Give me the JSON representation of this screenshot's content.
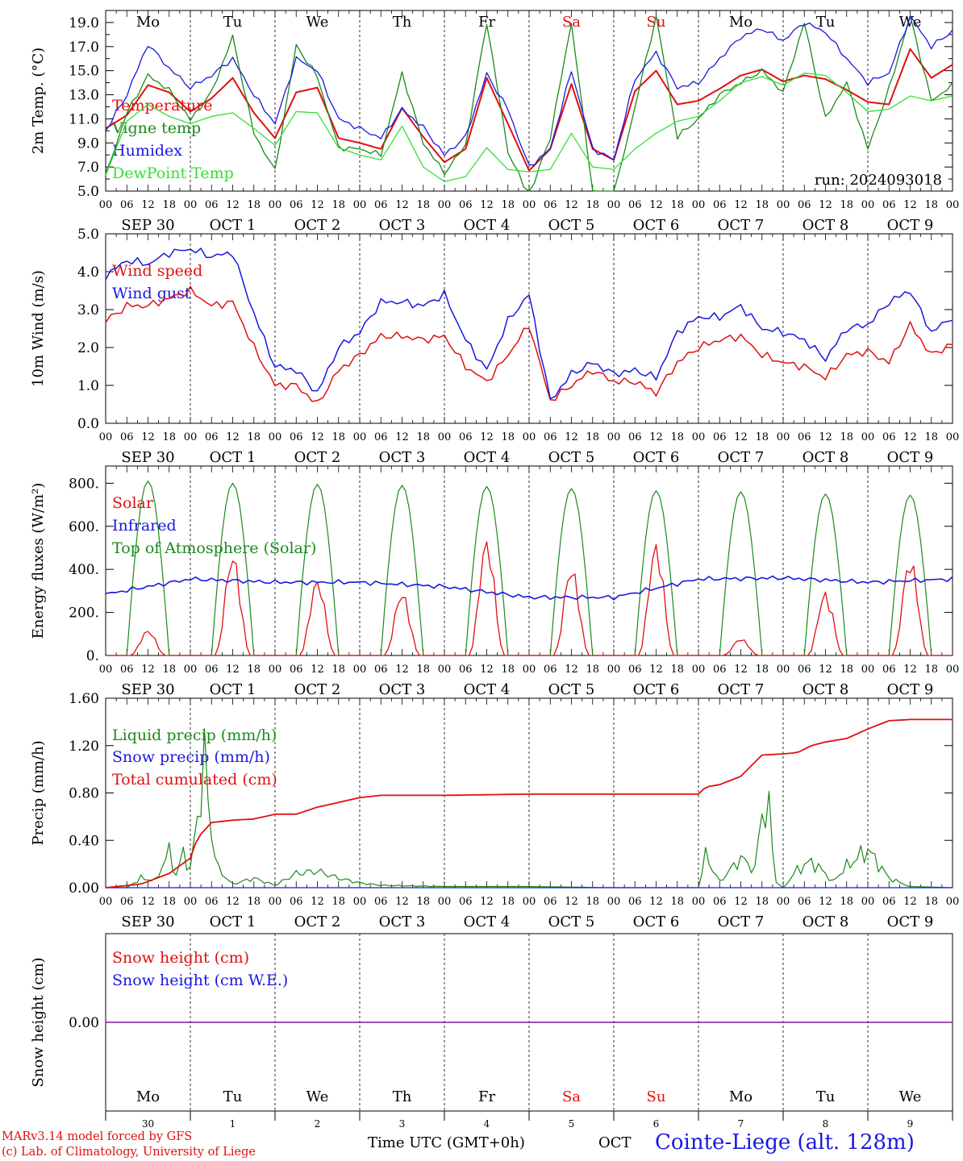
{
  "colors": {
    "red": "#e01010",
    "green": "#1a8a1a",
    "blue": "#1818e0",
    "lightgreen": "#33e033",
    "purple": "#7a1a9a",
    "black": "#000000"
  },
  "x_axis": {
    "tick_hours": [
      "00",
      "06",
      "12",
      "18"
    ],
    "last_tick": "00",
    "dates": [
      "SEP 30",
      "OCT  1",
      "OCT  2",
      "OCT  3",
      "OCT  4",
      "OCT  5",
      "OCT  6",
      "OCT  7",
      "OCT  8",
      "OCT  9"
    ],
    "day_abbr": [
      "Mo",
      "Tu",
      "We",
      "Th",
      "Fr",
      "Sa",
      "Su",
      "Mo",
      "Tu",
      "We"
    ],
    "weekend_days": [
      5,
      6
    ],
    "day_numbers": [
      "30",
      "1",
      "2",
      "3",
      "4",
      "5",
      "6",
      "7",
      "8",
      "9"
    ],
    "xlabel": "Time UTC (GMT+0h)",
    "month": "OCT"
  },
  "footer": {
    "model": "MARv3.14 model forced by GFS",
    "lab": "(c) Lab. of Climatology, University of Liege",
    "station": "Cointe-Liege (alt. 128m)"
  },
  "chart_data": [
    {
      "type": "line",
      "id": "temp",
      "ylabel": "2m Temp. (°C)",
      "ylim": [
        5.0,
        20.0
      ],
      "yticks": [
        5.0,
        7.0,
        9.0,
        11.0,
        13.0,
        15.0,
        17.0,
        19.0
      ],
      "ytick_labels": [
        "5.0",
        "7.0",
        "9.0",
        "11.0",
        "13.0",
        "15.0",
        "17.0",
        "19.0"
      ],
      "annotation": "run: 2024093018",
      "x_hours": [
        0,
        6,
        12,
        18,
        24,
        30,
        36,
        42,
        48,
        54,
        60,
        66,
        72,
        78,
        84,
        90,
        96,
        102,
        108,
        114,
        120,
        126,
        132,
        138,
        144,
        150,
        156,
        162,
        168,
        174,
        180,
        186,
        192,
        198,
        204,
        210,
        216,
        222,
        228,
        234,
        240
      ],
      "series": [
        {
          "name": "Temperature",
          "color": "red",
          "values": [
            10.2,
            11.3,
            13.8,
            13.2,
            11.6,
            12.7,
            14.4,
            11.5,
            9.4,
            13.2,
            13.6,
            9.4,
            9.0,
            8.5,
            11.9,
            9.5,
            7.4,
            8.5,
            14.4,
            10.6,
            6.7,
            8.5,
            13.9,
            8.5,
            7.6,
            13.3,
            15.0,
            12.2,
            12.5,
            13.5,
            14.6,
            15.1,
            14.1,
            14.6,
            14.3,
            13.4,
            12.4,
            12.2,
            16.8,
            14.4,
            15.5
          ]
        },
        {
          "name": "Vigne temp",
          "color": "green",
          "values": [
            6.3,
            11.5,
            14.6,
            13.4,
            10.9,
            13.2,
            17.8,
            9.8,
            6.7,
            17.1,
            14.5,
            8.6,
            8.5,
            8.0,
            14.8,
            9.0,
            6.5,
            8.8,
            19.0,
            8.3,
            4.5,
            9.5,
            19.0,
            5.0,
            4.5,
            12.0,
            19.5,
            9.5,
            11.0,
            13.0,
            14.0,
            15.0,
            13.2,
            19.0,
            11.0,
            14.0,
            8.5,
            13.5,
            19.5,
            12.5,
            13.8
          ]
        },
        {
          "name": "Humidex",
          "color": "blue",
          "values": [
            10.0,
            13.0,
            17.2,
            15.2,
            13.6,
            14.6,
            16.0,
            13.0,
            10.6,
            16.0,
            15.0,
            11.0,
            10.2,
            9.4,
            11.8,
            10.3,
            8.0,
            9.5,
            14.7,
            11.8,
            7.0,
            8.5,
            15.0,
            8.5,
            7.6,
            14.3,
            16.5,
            13.6,
            14.0,
            16.0,
            17.8,
            18.5,
            17.5,
            19.0,
            18.2,
            16.0,
            14.0,
            14.8,
            19.5,
            17.0,
            18.3
          ]
        },
        {
          "name": "DewPoint Temp",
          "color": "lightgreen",
          "values": [
            6.3,
            10.8,
            12.2,
            11.2,
            10.6,
            11.2,
            11.5,
            10.2,
            8.8,
            11.6,
            11.5,
            8.6,
            8.0,
            7.6,
            10.4,
            7.0,
            5.8,
            6.2,
            8.6,
            6.8,
            6.6,
            6.8,
            9.8,
            7.0,
            6.8,
            8.5,
            9.8,
            10.8,
            11.2,
            12.5,
            14.0,
            14.5,
            13.8,
            14.8,
            14.6,
            13.2,
            11.6,
            11.8,
            12.9,
            12.5,
            12.9
          ]
        }
      ]
    },
    {
      "type": "line",
      "id": "wind",
      "ylabel": "10m Wind (m/s)",
      "ylim": [
        0.0,
        5.0
      ],
      "yticks": [
        0.0,
        1.0,
        2.0,
        3.0,
        4.0,
        5.0
      ],
      "ytick_labels": [
        "0.0",
        "1.0",
        "2.0",
        "3.0",
        "4.0",
        "5.0"
      ],
      "x_hours": [
        0,
        6,
        12,
        18,
        24,
        30,
        36,
        42,
        48,
        54,
        60,
        66,
        72,
        78,
        84,
        90,
        96,
        102,
        108,
        114,
        120,
        126,
        132,
        138,
        144,
        150,
        156,
        162,
        168,
        174,
        180,
        186,
        192,
        198,
        204,
        210,
        216,
        222,
        228,
        234,
        240
      ],
      "series": [
        {
          "name": "Wind speed",
          "color": "red",
          "values": [
            2.7,
            3.1,
            3.1,
            3.3,
            3.5,
            3.1,
            3.2,
            2.0,
            1.0,
            1.0,
            0.5,
            1.4,
            1.8,
            2.3,
            2.3,
            2.2,
            2.3,
            1.5,
            1.1,
            1.8,
            2.6,
            0.6,
            1.0,
            1.4,
            1.1,
            1.1,
            0.8,
            1.6,
            2.0,
            2.2,
            2.3,
            1.8,
            1.6,
            1.5,
            1.2,
            1.8,
            1.9,
            1.6,
            2.6,
            1.8,
            2.1
          ]
        },
        {
          "name": "Wind gust",
          "color": "blue",
          "values": [
            3.9,
            4.3,
            4.2,
            4.5,
            4.6,
            4.4,
            4.5,
            2.9,
            1.5,
            1.4,
            0.8,
            2.0,
            2.4,
            3.2,
            3.2,
            3.1,
            3.4,
            2.2,
            1.4,
            2.7,
            3.4,
            0.6,
            1.3,
            1.6,
            1.3,
            1.4,
            1.2,
            2.4,
            2.8,
            2.8,
            3.1,
            2.5,
            2.4,
            2.2,
            1.7,
            2.5,
            2.6,
            3.2,
            3.5,
            2.4,
            2.8
          ]
        }
      ]
    },
    {
      "type": "line",
      "id": "energy",
      "ylabel": "Energy fluxes (W/m²)",
      "ylim": [
        0,
        880
      ],
      "yticks": [
        0,
        200,
        400,
        600,
        800
      ],
      "ytick_labels": [
        "0.",
        "200.",
        "400.",
        "600.",
        "800."
      ],
      "series": [
        {
          "name": "Solar",
          "color": "red",
          "peaks": [
            120,
            480,
            360,
            300,
            550,
            420,
            530,
            80,
            300,
            460
          ]
        },
        {
          "name": "Infrared",
          "color": "blue",
          "x_hours": [
            0,
            24,
            48,
            72,
            96,
            120,
            144,
            168,
            192,
            216,
            240
          ],
          "values": [
            285,
            355,
            340,
            340,
            320,
            270,
            270,
            355,
            360,
            340,
            355
          ]
        },
        {
          "name": "Top of Atmosphere (Solar)",
          "color": "green",
          "peaks": [
            810,
            800,
            795,
            790,
            785,
            775,
            765,
            760,
            750,
            745
          ]
        }
      ]
    },
    {
      "type": "line",
      "id": "precip",
      "ylabel": "Precip (mm/h)",
      "ylim": [
        0.0,
        1.6
      ],
      "yticks": [
        0.0,
        0.4,
        0.8,
        1.2,
        1.6
      ],
      "ytick_labels": [
        "0.00",
        "0.40",
        "0.80",
        "1.20",
        "1.60"
      ],
      "series": [
        {
          "name": "Liquid precip (mm/h)",
          "color": "green",
          "x_hours": [
            0,
            6,
            10,
            14,
            18,
            20,
            22,
            24,
            26,
            28,
            30,
            32,
            36,
            42,
            48,
            54,
            60,
            66,
            72,
            78,
            96,
            120,
            144,
            168,
            170,
            174,
            180,
            184,
            186,
            188,
            190,
            192,
            196,
            200,
            204,
            206,
            210,
            216,
            222,
            228,
            240
          ],
          "values": [
            0,
            0,
            0.08,
            0.06,
            0.3,
            0.1,
            0.3,
            0.15,
            0.6,
            1.05,
            0.45,
            0.15,
            0.03,
            0.08,
            0.02,
            0.12,
            0.14,
            0.08,
            0.04,
            0.02,
            0.01,
            0.01,
            0.0,
            0.0,
            0.27,
            0.05,
            0.25,
            0.15,
            0.66,
            0.62,
            0.05,
            0.0,
            0.15,
            0.22,
            0.12,
            0.05,
            0.18,
            0.32,
            0.08,
            0.01,
            0.0
          ]
        },
        {
          "name": "Snow precip (mm/h)",
          "color": "blue",
          "x_hours": [
            0,
            240
          ],
          "values": [
            0,
            0
          ]
        },
        {
          "name": "Total cumulated (cm)",
          "color": "red",
          "x_hours": [
            0,
            10,
            18,
            24,
            26,
            30,
            36,
            42,
            48,
            54,
            60,
            66,
            72,
            78,
            84,
            96,
            120,
            144,
            168,
            170,
            174,
            180,
            184,
            186,
            192,
            196,
            200,
            204,
            210,
            216,
            222,
            228,
            240
          ],
          "values": [
            0,
            0.03,
            0.12,
            0.25,
            0.42,
            0.55,
            0.57,
            0.58,
            0.62,
            0.62,
            0.68,
            0.72,
            0.76,
            0.78,
            0.78,
            0.78,
            0.79,
            0.79,
            0.79,
            0.85,
            0.87,
            0.94,
            1.06,
            1.12,
            1.13,
            1.14,
            1.2,
            1.23,
            1.26,
            1.34,
            1.41,
            1.42,
            1.42
          ]
        }
      ]
    },
    {
      "type": "line",
      "id": "snow",
      "ylabel": "Snow height (cm)",
      "yticks": [
        0.0
      ],
      "ytick_labels": [
        "0.00"
      ],
      "series": [
        {
          "name": "Snow height (cm)",
          "color": "red",
          "x_hours": [
            0,
            240
          ],
          "values": [
            0,
            0
          ]
        },
        {
          "name": "Snow height (cm W.E.)",
          "color": "blue",
          "x_hours": [
            0,
            240
          ],
          "values": [
            0,
            0
          ]
        }
      ]
    }
  ]
}
